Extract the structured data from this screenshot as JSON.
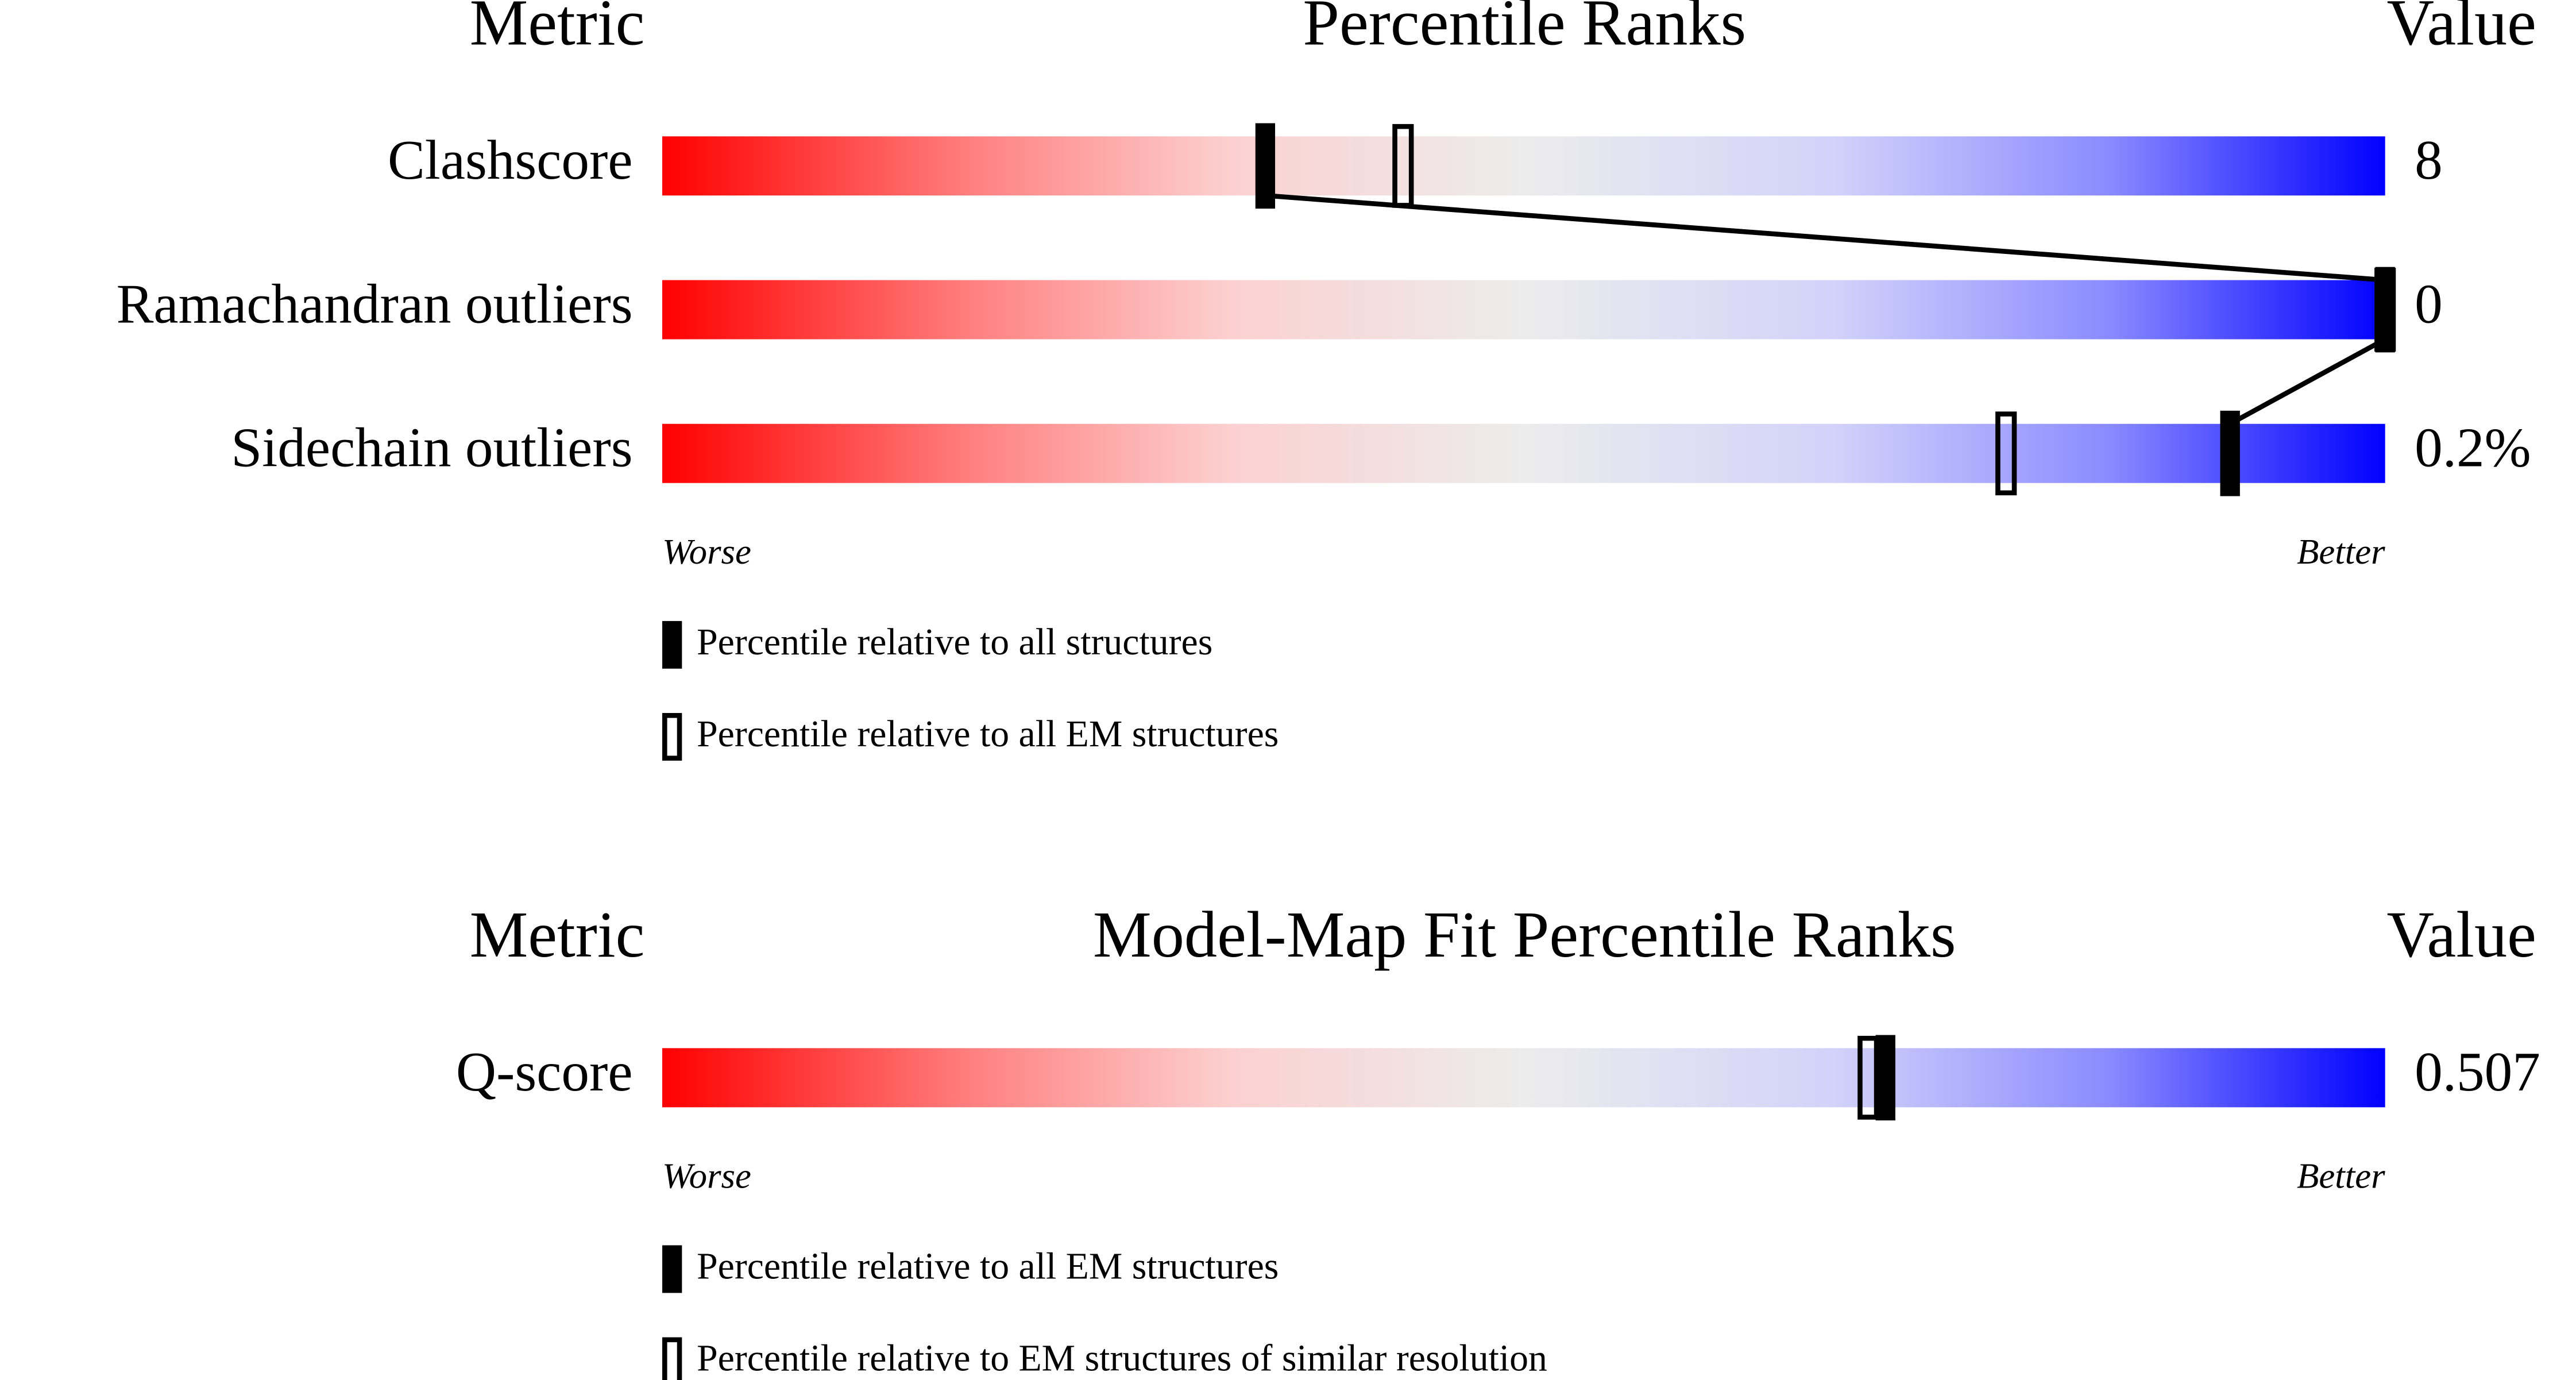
{
  "chart_data": [
    {
      "type": "slider",
      "metric_header": "Metric",
      "title": "Percentile Ranks",
      "value_header": "Value",
      "categories": [
        "Clashscore",
        "Ramachandran outliers",
        "Sidechain outliers"
      ],
      "metric_values": [
        "8",
        "0",
        "0.2%"
      ],
      "xlim": [
        0,
        100
      ],
      "worse_label": "Worse",
      "better_label": "Better",
      "connect": true,
      "series": [
        {
          "name": "Percentile relative to all structures",
          "style": "filled",
          "color": "#000000",
          "values": [
            35,
            100,
            91
          ]
        },
        {
          "name": "Percentile relative to all EM structures",
          "style": "open",
          "color": "#000000",
          "values": [
            43,
            100,
            78
          ]
        }
      ]
    },
    {
      "type": "slider",
      "metric_header": "Metric",
      "title": "Model-Map Fit Percentile Ranks",
      "value_header": "Value",
      "categories": [
        "Q-score"
      ],
      "metric_values": [
        "0.507"
      ],
      "xlim": [
        0,
        100
      ],
      "worse_label": "Worse",
      "better_label": "Better",
      "connect": false,
      "series": [
        {
          "name": "Percentile relative to all EM structures",
          "style": "filled",
          "color": "#000000",
          "values": [
            71
          ]
        },
        {
          "name": "Percentile relative to EM structures of similar resolution",
          "style": "open",
          "color": "#000000",
          "values": [
            70
          ]
        }
      ]
    }
  ]
}
